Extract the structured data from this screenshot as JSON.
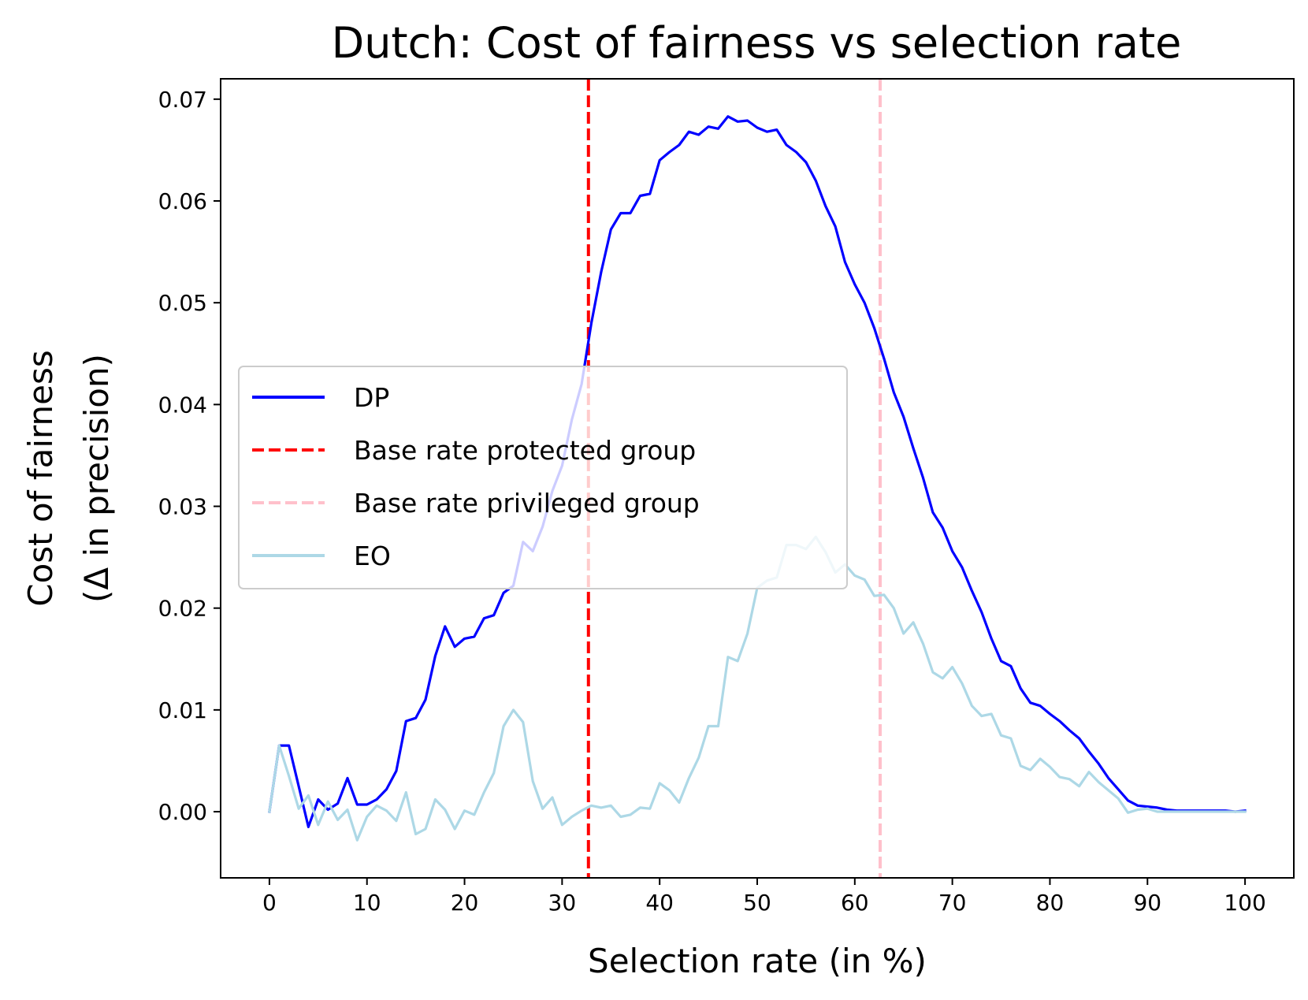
{
  "chart_data": {
    "type": "line",
    "title": "Dutch: Cost of fairness vs selection rate",
    "xlabel": "Selection rate (in %)",
    "ylabel_line1": "Cost of fairness",
    "ylabel_line2": "(Δ in precision)",
    "xlim": [
      -5,
      105
    ],
    "ylim": [
      -0.0065,
      0.072
    ],
    "xticks": [
      0,
      10,
      20,
      30,
      40,
      50,
      60,
      70,
      80,
      90,
      100
    ],
    "xtick_labels": [
      "0",
      "10",
      "20",
      "30",
      "40",
      "50",
      "60",
      "70",
      "80",
      "90",
      "100"
    ],
    "yticks": [
      0,
      0.01,
      0.02,
      0.03,
      0.04,
      0.05,
      0.06,
      0.07
    ],
    "ytick_labels": [
      "0.00",
      "0.01",
      "0.02",
      "0.03",
      "0.04",
      "0.05",
      "0.06",
      "0.07"
    ],
    "legend_position": "center-left",
    "series": [
      {
        "name": "DP",
        "color": "#0000ff",
        "style": "solid",
        "x": [
          0,
          1,
          2,
          3,
          4,
          5,
          6,
          7,
          8,
          9,
          10,
          11,
          12,
          13,
          14,
          15,
          16,
          17,
          18,
          19,
          20,
          21,
          22,
          23,
          24,
          25,
          26,
          27,
          28,
          29,
          30,
          31,
          32,
          33,
          34,
          35,
          36,
          37,
          38,
          39,
          40,
          41,
          42,
          43,
          44,
          45,
          46,
          47,
          48,
          49,
          50,
          51,
          52,
          53,
          54,
          55,
          56,
          57,
          58,
          59,
          60,
          61,
          62,
          63,
          64,
          65,
          66,
          67,
          68,
          69,
          70,
          71,
          72,
          73,
          74,
          75,
          76,
          77,
          78,
          79,
          80,
          81,
          82,
          83,
          84,
          85,
          86,
          87,
          88,
          89,
          90,
          91,
          92,
          93,
          94,
          95,
          96,
          97,
          98,
          99,
          100
        ],
        "y": [
          0.0,
          0.0065,
          0.0065,
          0.0025,
          -0.0015,
          0.0012,
          0.0002,
          0.0008,
          0.0033,
          0.0007,
          0.0007,
          0.0012,
          0.0022,
          0.004,
          0.0089,
          0.0092,
          0.011,
          0.0153,
          0.0182,
          0.0162,
          0.017,
          0.0172,
          0.019,
          0.0193,
          0.0215,
          0.0222,
          0.0265,
          0.0256,
          0.028,
          0.0315,
          0.034,
          0.0385,
          0.042,
          0.048,
          0.053,
          0.0572,
          0.0588,
          0.0588,
          0.0605,
          0.0607,
          0.064,
          0.0648,
          0.0655,
          0.0668,
          0.0665,
          0.0673,
          0.0671,
          0.0683,
          0.0678,
          0.0679,
          0.0672,
          0.0668,
          0.067,
          0.0655,
          0.0648,
          0.0638,
          0.062,
          0.0595,
          0.0575,
          0.054,
          0.0518,
          0.05,
          0.0475,
          0.0445,
          0.0412,
          0.0388,
          0.0357,
          0.0328,
          0.0294,
          0.0279,
          0.0256,
          0.024,
          0.0217,
          0.0196,
          0.017,
          0.0148,
          0.0143,
          0.0121,
          0.0107,
          0.0104,
          0.0096,
          0.0089,
          0.008,
          0.0072,
          0.0059,
          0.0047,
          0.0033,
          0.0022,
          0.0011,
          0.0006,
          0.0005,
          0.0004,
          0.0002,
          0.0001,
          0.0001,
          0.0001,
          0.0001,
          0.0001,
          0.0001,
          0.0,
          0.0001
        ]
      },
      {
        "name": "Base rate protected group",
        "color": "#ff0000",
        "style": "dashed",
        "vline_x": 32.7
      },
      {
        "name": "Base rate privileged group",
        "color": "#ffc0cb",
        "style": "dashed",
        "vline_x": 62.6
      },
      {
        "name": "EO",
        "color": "#add8e6",
        "style": "solid",
        "x": [
          0,
          1,
          2,
          3,
          4,
          5,
          6,
          7,
          8,
          9,
          10,
          11,
          12,
          13,
          14,
          15,
          16,
          17,
          18,
          19,
          20,
          21,
          22,
          23,
          24,
          25,
          26,
          27,
          28,
          29,
          30,
          31,
          32,
          33,
          34,
          35,
          36,
          37,
          38,
          39,
          40,
          41,
          42,
          43,
          44,
          45,
          46,
          47,
          48,
          49,
          50,
          51,
          52,
          53,
          54,
          55,
          56,
          57,
          58,
          59,
          60,
          61,
          62,
          63,
          64,
          65,
          66,
          67,
          68,
          69,
          70,
          71,
          72,
          73,
          74,
          75,
          76,
          77,
          78,
          79,
          80,
          81,
          82,
          83,
          84,
          85,
          86,
          87,
          88,
          89,
          90,
          91,
          92,
          93,
          94,
          95,
          96,
          97,
          98,
          99,
          100
        ],
        "y": [
          0.0,
          0.0065,
          0.0035,
          0.0003,
          0.0016,
          -0.0013,
          0.001,
          -0.0008,
          0.0002,
          -0.0028,
          -0.0005,
          0.0006,
          0.0001,
          -0.0009,
          0.0019,
          -0.0022,
          -0.0017,
          0.0012,
          0.0002,
          -0.0017,
          0.0001,
          -0.0003,
          0.0019,
          0.0038,
          0.0084,
          0.01,
          0.0088,
          0.003,
          0.0003,
          0.0014,
          -0.0013,
          -0.0005,
          0.0001,
          0.0006,
          0.0004,
          0.0006,
          -0.0005,
          -0.0003,
          0.0004,
          0.0003,
          0.0028,
          0.0021,
          0.0009,
          0.0033,
          0.0053,
          0.0084,
          0.0084,
          0.0152,
          0.0148,
          0.0175,
          0.022,
          0.0227,
          0.023,
          0.0262,
          0.0262,
          0.0258,
          0.027,
          0.0255,
          0.0235,
          0.0243,
          0.0232,
          0.0228,
          0.0212,
          0.0213,
          0.02,
          0.0175,
          0.0186,
          0.0165,
          0.0137,
          0.0131,
          0.0142,
          0.0126,
          0.0104,
          0.0094,
          0.0096,
          0.0075,
          0.0072,
          0.0045,
          0.0041,
          0.0052,
          0.0044,
          0.0034,
          0.0032,
          0.0025,
          0.0039,
          0.0029,
          0.0021,
          0.0013,
          -0.0001,
          0.0002,
          0.0003,
          0.0,
          0.0,
          0.0,
          0.0,
          0.0,
          0.0,
          0.0,
          0.0,
          0.0,
          0.0
        ]
      }
    ]
  }
}
